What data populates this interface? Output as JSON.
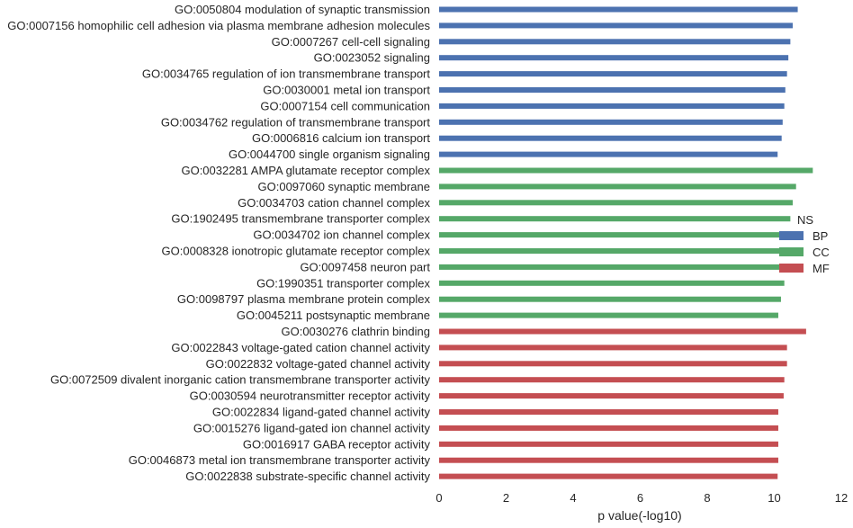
{
  "chart_data": {
    "type": "bar",
    "orientation": "horizontal",
    "title": "",
    "xlabel": "p value(-log10)",
    "ylabel": "",
    "xlim": [
      0,
      12
    ],
    "xticks": [
      "0",
      "2",
      "4",
      "6",
      "8",
      "10",
      "12"
    ],
    "grid": false,
    "legend": {
      "title": "NS",
      "placement": "right",
      "entries": [
        {
          "label": "BP",
          "color": "#4c72b0"
        },
        {
          "label": "CC",
          "color": "#55a868"
        },
        {
          "label": "MF",
          "color": "#c44e52"
        }
      ]
    },
    "categories": [
      "GO:0050804 modulation of synaptic transmission",
      "GO:0007156 homophilic cell adhesion via plasma membrane adhesion molecules",
      "GO:0007267 cell-cell signaling",
      "GO:0023052 signaling",
      "GO:0034765 regulation of ion transmembrane transport",
      "GO:0030001 metal ion transport",
      "GO:0007154 cell communication",
      "GO:0034762 regulation of transmembrane transport",
      "GO:0006816 calcium ion transport",
      "GO:0044700 single organism signaling",
      "GO:0032281 AMPA glutamate receptor complex",
      "GO:0097060 synaptic membrane",
      "GO:0034703 cation channel complex",
      "GO:1902495 transmembrane transporter complex",
      "GO:0034702 ion channel complex",
      "GO:0008328 ionotropic glutamate receptor complex",
      "GO:0097458 neuron part",
      "GO:1990351 transporter complex",
      "GO:0098797 plasma membrane protein complex",
      "GO:0045211 postsynaptic membrane",
      "GO:0030276 clathrin binding",
      "GO:0022843 voltage-gated cation channel activity",
      "GO:0022832 voltage-gated channel activity",
      "GO:0072509 divalent inorganic cation transmembrane transporter activity",
      "GO:0030594 neurotransmitter receptor activity",
      "GO:0022834 ligand-gated channel activity",
      "GO:0015276 ligand-gated ion channel activity",
      "GO:0016917 GABA receptor activity",
      "GO:0046873 metal ion transmembrane transporter activity",
      "GO:0022838 substrate-specific channel activity"
    ],
    "values": [
      10.7,
      10.55,
      10.48,
      10.42,
      10.38,
      10.33,
      10.3,
      10.25,
      10.22,
      10.1,
      11.15,
      10.65,
      10.55,
      10.48,
      10.42,
      10.38,
      10.35,
      10.3,
      10.2,
      10.12,
      10.95,
      10.38,
      10.38,
      10.3,
      10.28,
      10.12,
      10.12,
      10.12,
      10.12,
      10.1
    ],
    "groups": [
      "BP",
      "BP",
      "BP",
      "BP",
      "BP",
      "BP",
      "BP",
      "BP",
      "BP",
      "BP",
      "CC",
      "CC",
      "CC",
      "CC",
      "CC",
      "CC",
      "CC",
      "CC",
      "CC",
      "CC",
      "MF",
      "MF",
      "MF",
      "MF",
      "MF",
      "MF",
      "MF",
      "MF",
      "MF",
      "MF"
    ]
  }
}
